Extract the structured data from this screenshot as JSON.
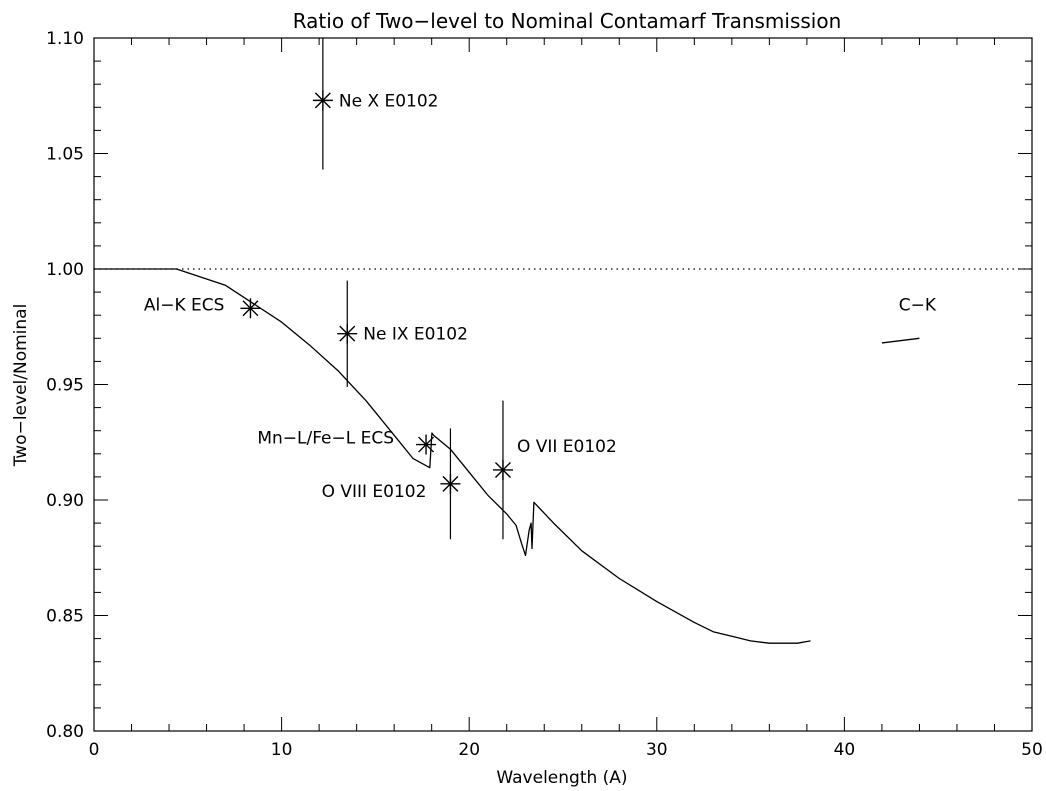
{
  "chart_data": {
    "type": "scatter",
    "title": "Ratio of Two−level to Nominal Contamarf Transmission",
    "xlabel": "Wavelength (A)",
    "ylabel": "Two−level/Nominal",
    "xlim": [
      0,
      50
    ],
    "ylim": [
      0.8,
      1.1
    ],
    "x_ticks": [
      "0",
      "10",
      "20",
      "30",
      "40",
      "50"
    ],
    "y_ticks": [
      "0.80",
      "0.85",
      "0.90",
      "0.95",
      "1.00",
      "1.05",
      "1.10"
    ],
    "reference_line": {
      "y": 1.0,
      "style": "dotted"
    },
    "curve": {
      "x": [
        0,
        2,
        4.4,
        5.5,
        7,
        8.5,
        10,
        11.5,
        13,
        14.5,
        16,
        17,
        17.9,
        18.01,
        18.1,
        19,
        20,
        21,
        22,
        22.5,
        22.8,
        23.0,
        23.2,
        23.3,
        23.35,
        23.45,
        24.5,
        26,
        28,
        30,
        32,
        33,
        34,
        35,
        36,
        37,
        37.5,
        38.2
      ],
      "y": [
        1.0,
        1.0,
        1.0,
        0.997,
        0.993,
        0.985,
        0.977,
        0.967,
        0.956,
        0.943,
        0.928,
        0.918,
        0.914,
        0.929,
        0.928,
        0.922,
        0.912,
        0.902,
        0.894,
        0.889,
        0.881,
        0.876,
        0.887,
        0.89,
        0.879,
        0.899,
        0.89,
        0.878,
        0.866,
        0.856,
        0.847,
        0.843,
        0.841,
        0.839,
        0.838,
        0.838,
        0.838,
        0.839
      ]
    },
    "c_k_segment": {
      "x": [
        42,
        44
      ],
      "y": [
        0.968,
        0.97
      ]
    },
    "points": [
      {
        "label": "Ne X E0102",
        "x": 12.2,
        "y": 1.073,
        "yerr_low": 1.043,
        "yerr_high": 1.105,
        "label_side": "right"
      },
      {
        "label": "Al−K ECS",
        "x": 8.34,
        "y": 0.983,
        "label_side": "left"
      },
      {
        "label": "Ne IX E0102",
        "x": 13.5,
        "y": 0.972,
        "yerr_low": 0.949,
        "yerr_high": 0.995,
        "label_side": "right"
      },
      {
        "label": "Mn−L/Fe−L ECS",
        "x": 17.7,
        "y": 0.924,
        "label_side": "left"
      },
      {
        "label": "O VIII E0102",
        "x": 19.0,
        "y": 0.907,
        "yerr_low": 0.883,
        "yerr_high": 0.931,
        "label_side": "left"
      },
      {
        "label": "O VII E0102",
        "x": 21.8,
        "y": 0.913,
        "yerr_low": 0.883,
        "yerr_high": 0.943,
        "label_side": "right"
      }
    ],
    "annotations": [
      {
        "text": "C−K",
        "x": 42.9,
        "y": 0.982
      }
    ]
  }
}
